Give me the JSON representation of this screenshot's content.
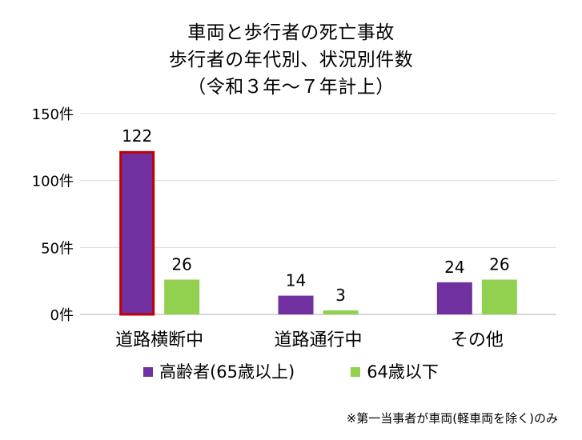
{
  "chart_data": {
    "type": "bar",
    "title_lines": [
      "車両と歩行者の死亡事故",
      "歩行者の年代別、状況別件数",
      "（令和３年～７年計上）"
    ],
    "categories": [
      "道路横断中",
      "道路通行中",
      "その他"
    ],
    "series": [
      {
        "name": "高齢者(65歳以上)",
        "color": "#7030a0",
        "values": [
          122,
          14,
          24
        ]
      },
      {
        "name": "64歳以下",
        "color": "#92d050",
        "values": [
          26,
          3,
          26
        ]
      }
    ],
    "ylim": [
      0,
      150
    ],
    "yticks": [
      {
        "value": 0,
        "label": "0件"
      },
      {
        "value": 50,
        "label": "50件"
      },
      {
        "value": 100,
        "label": "100件"
      },
      {
        "value": 150,
        "label": "150件"
      }
    ],
    "grid": true,
    "legend": "bottom",
    "highlight": {
      "series": 0,
      "category": 0,
      "outline_color": "#c00000"
    },
    "footnote": "※第一当事者が車両(軽車両を除く)のみ"
  }
}
